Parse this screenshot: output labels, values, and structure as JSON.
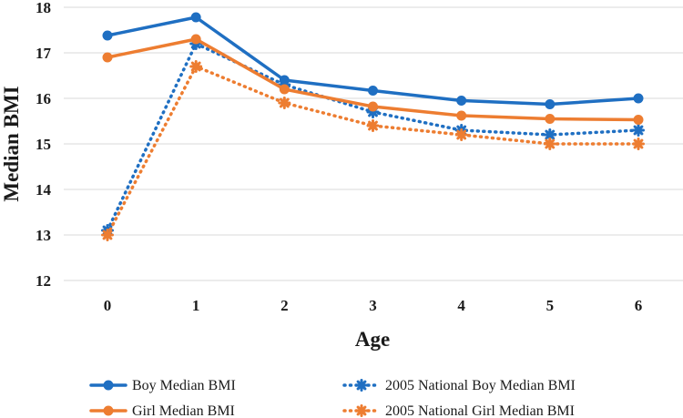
{
  "chart_data": {
    "type": "line",
    "title": "",
    "xlabel": "Age",
    "ylabel": "Median BMI",
    "x": [
      0,
      1,
      2,
      3,
      4,
      5,
      6
    ],
    "xticks": [
      "0",
      "1",
      "2",
      "3",
      "4",
      "5",
      "6"
    ],
    "ylim": [
      12,
      18
    ],
    "yticks": [
      "12",
      "13",
      "14",
      "15",
      "16",
      "17",
      "18"
    ],
    "grid": "horizontal",
    "legend_position": "bottom",
    "series": [
      {
        "name": "Boy Median BMI",
        "color": "#1f6fc2",
        "style": "solid",
        "marker": "circle",
        "values": [
          17.38,
          17.78,
          16.4,
          16.17,
          15.95,
          15.87,
          16.0
        ]
      },
      {
        "name": "2005 National Boy Median BMI",
        "color": "#1f6fc2",
        "style": "dotted",
        "marker": "star",
        "values": [
          13.1,
          17.2,
          16.3,
          15.7,
          15.3,
          15.2,
          15.3
        ]
      },
      {
        "name": "Girl Median BMI",
        "color": "#ed7d31",
        "style": "solid",
        "marker": "circle",
        "values": [
          16.9,
          17.3,
          16.2,
          15.82,
          15.62,
          15.55,
          15.53
        ]
      },
      {
        "name": "2005 National Girl Median BMI",
        "color": "#ed7d31",
        "style": "dotted",
        "marker": "star",
        "values": [
          13.0,
          16.7,
          15.9,
          15.4,
          15.2,
          15.0,
          15.0
        ]
      }
    ]
  }
}
